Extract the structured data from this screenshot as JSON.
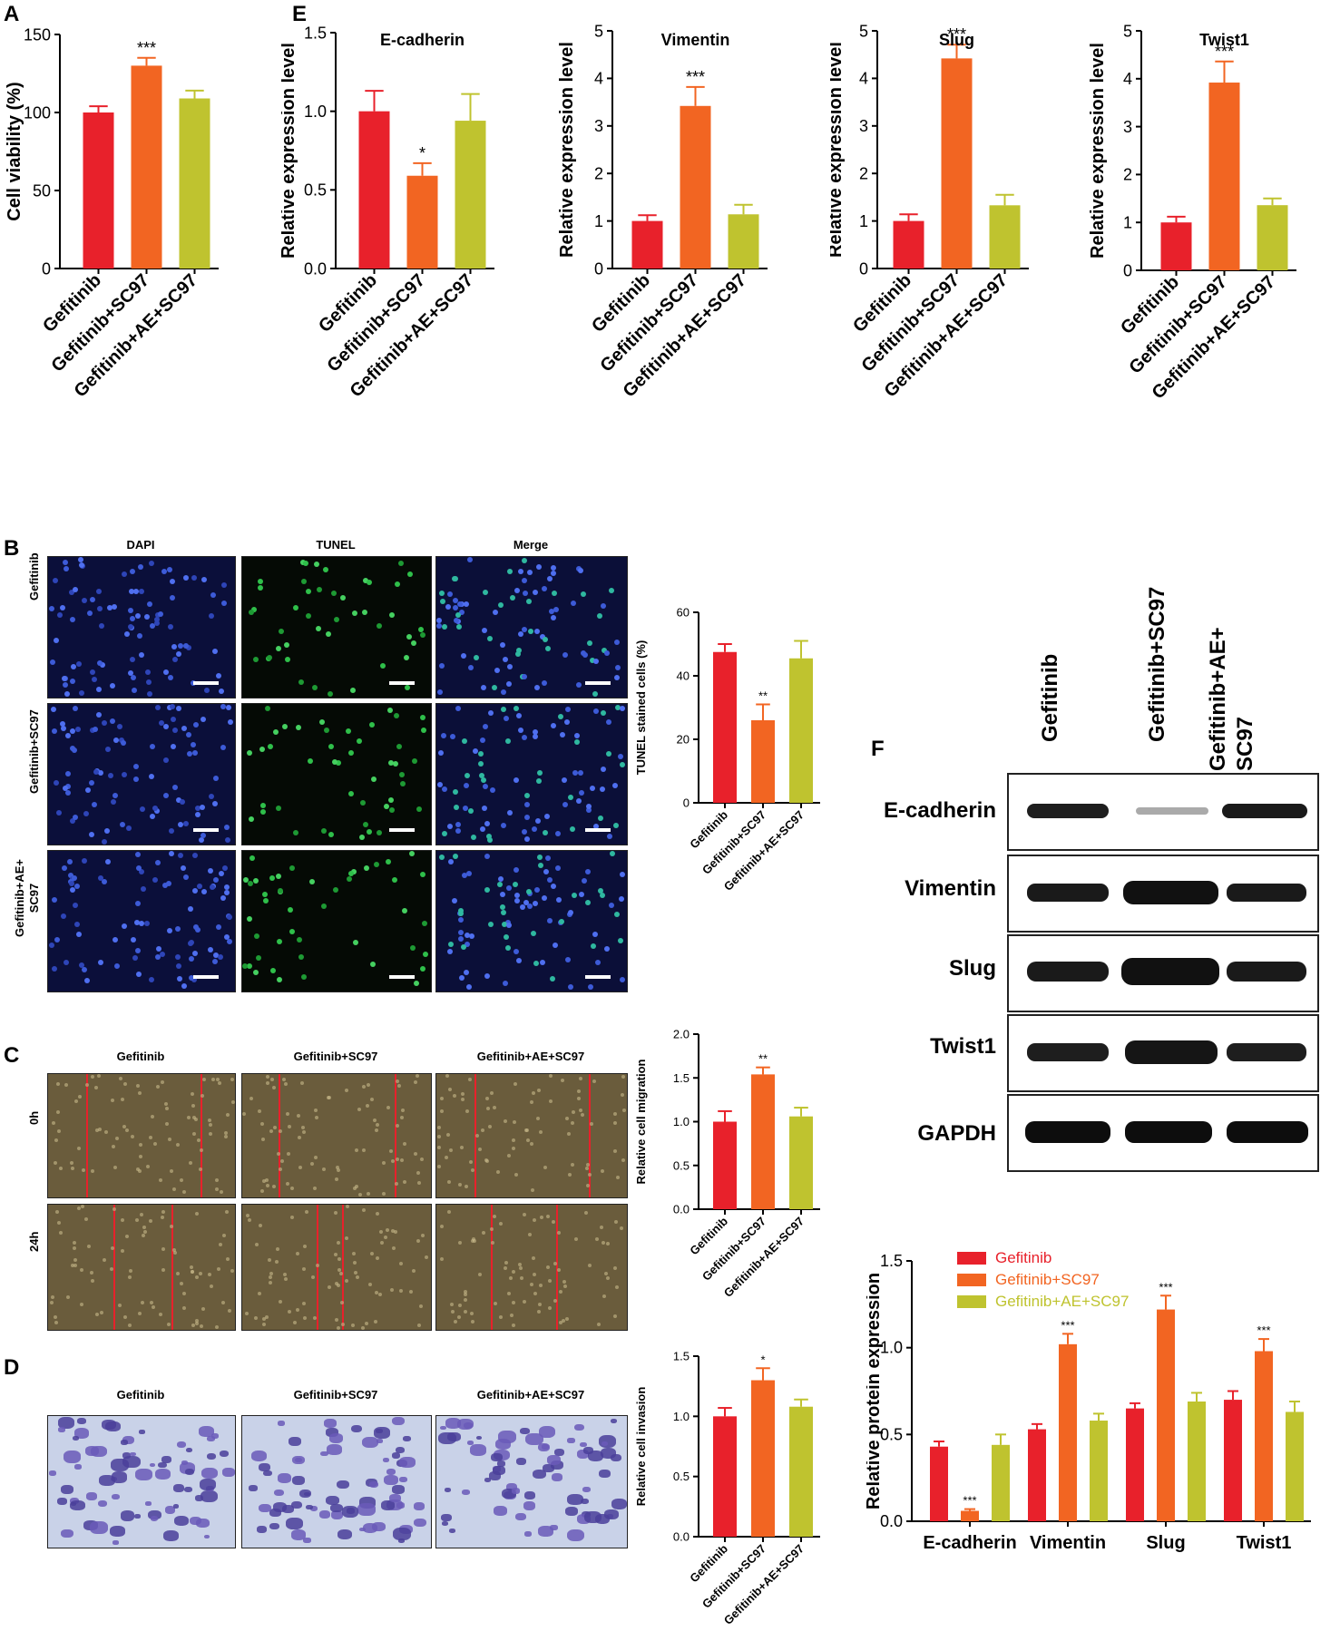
{
  "panel_labels": {
    "A": "A",
    "B": "B",
    "C": "C",
    "D": "D",
    "E": "E",
    "F": "F"
  },
  "colors": {
    "gefitinib": "#e8212b",
    "gefitinib_sc97": "#f26522",
    "gefitinib_ae_sc97": "#bfc32f"
  },
  "microscopy": {
    "tunel": {
      "column_headers": [
        "DAPI",
        "TUNEL",
        "Merge"
      ],
      "row_labels": [
        "Gefitinib",
        "Gefitinib+SC97",
        "Gefitinib+AE+ SC97"
      ]
    },
    "migration": {
      "column_headers": [
        "Gefitinib",
        "Gefitinib+SC97",
        "Gefitinib+AE+SC97"
      ],
      "row_labels": [
        "0h",
        "24h"
      ]
    },
    "invasion": {
      "column_headers": [
        "Gefitinib",
        "Gefitinib+SC97",
        "Gefitinib+AE+SC97"
      ]
    }
  },
  "western_blot": {
    "lanes": [
      "Gefitinib",
      "Gefitinib+SC97",
      "Gefitinib+AE+ SC97"
    ],
    "proteins": [
      "E-cadherin",
      "Vimentin",
      "Slug",
      "Twist1",
      "GAPDH"
    ]
  },
  "chart_data": [
    {
      "id": "A",
      "type": "bar",
      "categories": [
        "Gefitinib",
        "Gefitinib+SC97",
        "Gefitinib+AE+SC97"
      ],
      "values": [
        100,
        130,
        109
      ],
      "errors": [
        4,
        5,
        5
      ],
      "sig": [
        "",
        "***",
        ""
      ],
      "title": "",
      "xlabel": "",
      "ylabel": "Cell viability (%)",
      "ylim": [
        0,
        150
      ],
      "yticks": [
        0,
        50,
        100,
        150
      ],
      "ytick_labels": [
        "0",
        "50",
        "100",
        "150"
      ]
    },
    {
      "id": "E1",
      "type": "bar",
      "categories": [
        "Gefitinib",
        "Gefitinib+SC97",
        "Gefitinib+AE+SC97"
      ],
      "values": [
        1.0,
        0.59,
        0.94
      ],
      "errors": [
        0.13,
        0.08,
        0.17
      ],
      "sig": [
        "",
        "*",
        ""
      ],
      "title": "E-cadherin",
      "xlabel": "",
      "ylabel": "Relative expression level",
      "ylim": [
        0,
        1.5
      ],
      "yticks": [
        0,
        0.5,
        1,
        1.5
      ],
      "ytick_labels": [
        "0.0",
        "0.5",
        "1.0",
        "1.5"
      ]
    },
    {
      "id": "E2",
      "type": "bar",
      "categories": [
        "Gefitinib",
        "Gefitinib+SC97",
        "Gefitinib+AE+SC97"
      ],
      "values": [
        1.0,
        3.42,
        1.14
      ],
      "errors": [
        0.12,
        0.4,
        0.2
      ],
      "sig": [
        "",
        "***",
        ""
      ],
      "title": "Vimentin",
      "xlabel": "",
      "ylabel": "Relative expression level",
      "ylim": [
        0,
        5
      ],
      "yticks": [
        0,
        1,
        2,
        3,
        4,
        5
      ],
      "ytick_labels": [
        "0",
        "1",
        "2",
        "3",
        "4",
        "5"
      ]
    },
    {
      "id": "E3",
      "type": "bar",
      "categories": [
        "Gefitinib",
        "Gefitinib+SC97",
        "Gefitinib+AE+SC97"
      ],
      "values": [
        1.0,
        4.42,
        1.33
      ],
      "errors": [
        0.14,
        0.29,
        0.22
      ],
      "sig": [
        "",
        "***",
        ""
      ],
      "title": "Slug",
      "xlabel": "",
      "ylabel": "Relative expression level",
      "ylim": [
        0,
        5
      ],
      "yticks": [
        0,
        1,
        2,
        3,
        4,
        5
      ],
      "ytick_labels": [
        "0",
        "1",
        "2",
        "3",
        "4",
        "5"
      ]
    },
    {
      "id": "E4",
      "type": "bar",
      "categories": [
        "Gefitinib",
        "Gefitinib+SC97",
        "Gefitinib+AE+SC97"
      ],
      "values": [
        1.0,
        3.92,
        1.36
      ],
      "errors": [
        0.12,
        0.44,
        0.14
      ],
      "sig": [
        "",
        "***",
        ""
      ],
      "title": "Twist1",
      "xlabel": "",
      "ylabel": "Relative expression level",
      "ylim": [
        0,
        5
      ],
      "yticks": [
        0,
        1,
        2,
        3,
        4,
        5
      ],
      "ytick_labels": [
        "0",
        "1",
        "2",
        "3",
        "4",
        "5"
      ]
    },
    {
      "id": "B",
      "type": "bar",
      "categories": [
        "Gefitinib",
        "Gefitinib+SC97",
        "Gefitinib+AE+SC97"
      ],
      "values": [
        47.5,
        26,
        45.5
      ],
      "errors": [
        2.5,
        5,
        5.5
      ],
      "sig": [
        "",
        "**",
        ""
      ],
      "title": "",
      "xlabel": "",
      "ylabel": "TUNEL stained cells (%)",
      "ylim": [
        0,
        60
      ],
      "yticks": [
        0,
        20,
        40,
        60
      ],
      "ytick_labels": [
        "0",
        "20",
        "40",
        "60"
      ]
    },
    {
      "id": "C",
      "type": "bar",
      "categories": [
        "Gefitinib",
        "Gefitinib+SC97",
        "Gefitinib+AE+SC97"
      ],
      "values": [
        1.0,
        1.54,
        1.06
      ],
      "errors": [
        0.12,
        0.08,
        0.1
      ],
      "sig": [
        "",
        "**",
        ""
      ],
      "title": "",
      "xlabel": "",
      "ylabel": "Relative cell migration",
      "ylim": [
        0,
        2
      ],
      "yticks": [
        0,
        0.5,
        1,
        1.5,
        2
      ],
      "ytick_labels": [
        "0.0",
        "0.5",
        "1.0",
        "1.5",
        "2.0"
      ]
    },
    {
      "id": "D",
      "type": "bar",
      "categories": [
        "Gefitinib",
        "Gefitinib+SC97",
        "Gefitinib+AE+SC97"
      ],
      "values": [
        1.0,
        1.3,
        1.08
      ],
      "errors": [
        0.07,
        0.1,
        0.06
      ],
      "sig": [
        "",
        "*",
        ""
      ],
      "title": "",
      "xlabel": "",
      "ylabel": "Relative cell invasion",
      "ylim": [
        0,
        1.5
      ],
      "yticks": [
        0,
        0.5,
        1,
        1.5
      ],
      "ytick_labels": [
        "0.0",
        "0.5",
        "1.0",
        "1.5"
      ]
    },
    {
      "id": "F",
      "type": "bar",
      "categories": [
        "E-cadherin",
        "Vimentin",
        "Slug",
        "Twist1"
      ],
      "series": [
        {
          "name": "Gefitinib",
          "values": [
            0.43,
            0.53,
            0.65,
            0.7
          ],
          "errors": [
            0.03,
            0.03,
            0.03,
            0.05
          ],
          "sig": [
            "",
            "",
            "",
            ""
          ]
        },
        {
          "name": "Gefitinib+SC97",
          "values": [
            0.06,
            1.02,
            1.22,
            0.98
          ],
          "errors": [
            0.01,
            0.06,
            0.08,
            0.07
          ],
          "sig": [
            "***",
            "***",
            "***",
            "***"
          ]
        },
        {
          "name": "Gefitinib+AE+SC97",
          "values": [
            0.44,
            0.58,
            0.69,
            0.63
          ],
          "errors": [
            0.06,
            0.04,
            0.05,
            0.06
          ],
          "sig": [
            "",
            "",
            "",
            ""
          ]
        }
      ],
      "title": "",
      "xlabel": "",
      "ylabel": "Relative protein expression",
      "ylim": [
        0,
        1.5
      ],
      "yticks": [
        0,
        0.5,
        1,
        1.5
      ],
      "ytick_labels": [
        "0.0",
        "0.5",
        "1.0",
        "1.5"
      ],
      "legend": "top-left"
    }
  ]
}
